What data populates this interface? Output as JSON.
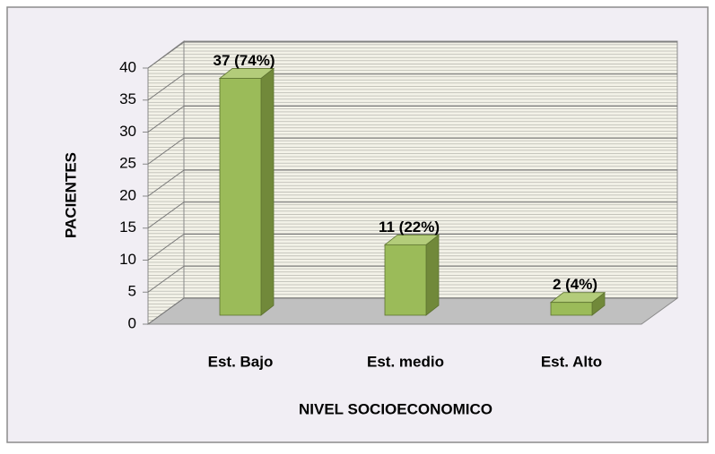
{
  "chart_data": {
    "type": "bar3d",
    "categories": [
      "Est. Bajo",
      "Est. medio",
      "Est. Alto"
    ],
    "values": [
      37,
      11,
      2
    ],
    "value_labels": [
      "37 (74%)",
      "11 (22%)",
      "2 (4%)"
    ],
    "color": "#9bbb59",
    "ylim": [
      0,
      40
    ],
    "yticks": [
      0,
      5,
      10,
      15,
      20,
      25,
      30,
      35,
      40
    ],
    "grid": true,
    "ylabel": "PACIENTES",
    "xlabel": "NIVEL SOCIOECONOMICO"
  }
}
